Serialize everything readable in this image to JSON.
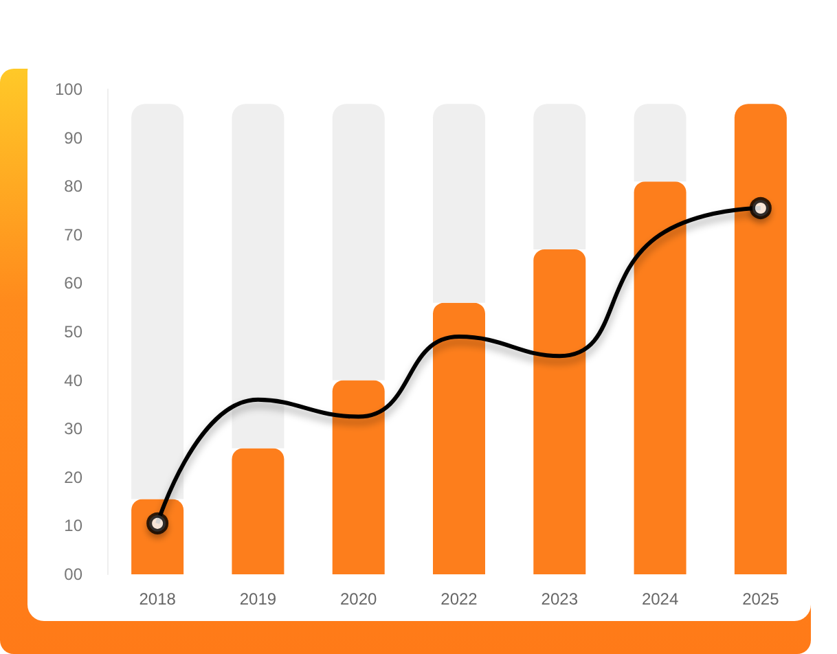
{
  "chart_data": {
    "type": "bar",
    "stacked": true,
    "categories": [
      "2018",
      "2019",
      "2020",
      "2022",
      "2023",
      "2024",
      "2025"
    ],
    "series": [
      {
        "color": "#fd7e1c",
        "values": [
          15.5,
          26,
          40,
          56,
          67,
          81,
          97
        ]
      },
      {
        "color": "#efefef",
        "values": [
          81.5,
          71,
          57,
          41,
          30,
          16,
          0
        ]
      },
      {
        "type": "line",
        "color": "#000000",
        "values": [
          10.5,
          36,
          32.5,
          49,
          45,
          70,
          75.5
        ]
      },
      {
        "type": "scatter",
        "color": "#000000",
        "marker": "circle",
        "values": [
          10.5,
          null,
          null,
          null,
          null,
          null,
          75.5
        ]
      }
    ],
    "ylim": [
      0,
      100
    ],
    "yticks": [
      {
        "value": 0,
        "label": "00"
      },
      10,
      20,
      30,
      40,
      50,
      60,
      70,
      80,
      90,
      100
    ],
    "grid": false
  }
}
